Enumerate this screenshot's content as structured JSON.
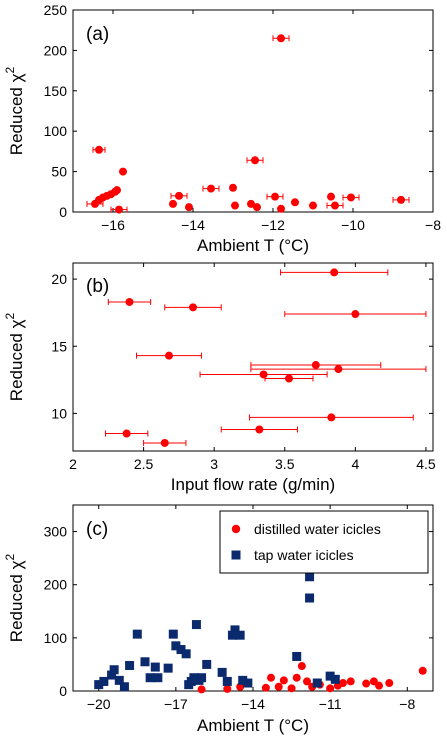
{
  "chart_data": [
    {
      "type": "scatter",
      "panel_label": "(a)",
      "xlabel": "Ambient T (°C)",
      "ylabel": "Reduced χ",
      "ylabel_sup": "2",
      "xlim": [
        -17,
        -8
      ],
      "ylim": [
        0,
        250
      ],
      "xticks": [
        -16,
        -14,
        -12,
        -10,
        -8
      ],
      "yticks": [
        0,
        50,
        100,
        150,
        200,
        250
      ],
      "color": "#ff0000",
      "points": [
        {
          "x": -16.45,
          "y": 10,
          "xerr": 0.2
        },
        {
          "x": -16.35,
          "y": 15,
          "xerr": 0
        },
        {
          "x": -16.25,
          "y": 18,
          "xerr": 0
        },
        {
          "x": -16.15,
          "y": 20,
          "xerr": 0
        },
        {
          "x": -16.05,
          "y": 22,
          "xerr": 0
        },
        {
          "x": -15.95,
          "y": 25,
          "xerr": 0
        },
        {
          "x": -15.9,
          "y": 27,
          "xerr": 0
        },
        {
          "x": -16.35,
          "y": 77,
          "xerr": 0.15
        },
        {
          "x": -15.75,
          "y": 50,
          "xerr": 0
        },
        {
          "x": -15.85,
          "y": 3,
          "xerr": 0.2
        },
        {
          "x": -14.5,
          "y": 10,
          "xerr": 0
        },
        {
          "x": -14.35,
          "y": 20,
          "xerr": 0.2
        },
        {
          "x": -14.1,
          "y": 6,
          "xerr": 0
        },
        {
          "x": -13.55,
          "y": 29,
          "xerr": 0.2
        },
        {
          "x": -13.0,
          "y": 30,
          "xerr": 0
        },
        {
          "x": -12.95,
          "y": 8,
          "xerr": 0
        },
        {
          "x": -12.55,
          "y": 10,
          "xerr": 0
        },
        {
          "x": -12.45,
          "y": 64,
          "xerr": 0.2
        },
        {
          "x": -12.4,
          "y": 6,
          "xerr": 0
        },
        {
          "x": -11.95,
          "y": 19,
          "xerr": 0.2
        },
        {
          "x": -11.8,
          "y": 4,
          "xerr": 0
        },
        {
          "x": -11.8,
          "y": 215,
          "xerr": 0.2
        },
        {
          "x": -11.45,
          "y": 12,
          "xerr": 0
        },
        {
          "x": -11.0,
          "y": 8,
          "xerr": 0
        },
        {
          "x": -10.55,
          "y": 19,
          "xerr": 0
        },
        {
          "x": -10.45,
          "y": 8,
          "xerr": 0.2
        },
        {
          "x": -10.05,
          "y": 18,
          "xerr": 0.2
        },
        {
          "x": -8.8,
          "y": 15,
          "xerr": 0.2
        }
      ]
    },
    {
      "type": "scatter",
      "panel_label": "(b)",
      "xlabel": "Input flow rate (g/min)",
      "ylabel": "Reduced χ",
      "ylabel_sup": "2",
      "xlim": [
        2,
        4.55
      ],
      "ylim": [
        7.2,
        21.2
      ],
      "xticks": [
        2,
        2.5,
        3,
        3.5,
        4,
        4.5
      ],
      "xtick_labels": [
        "2",
        "2.5",
        "3",
        "3.5",
        "4",
        "4.5"
      ],
      "yticks": [
        10,
        15,
        20
      ],
      "color": "#ff0000",
      "points": [
        {
          "x": 2.4,
          "y": 18.3,
          "xerr": 0.15
        },
        {
          "x": 2.85,
          "y": 17.9,
          "xerr": 0.2
        },
        {
          "x": 3.85,
          "y": 20.5,
          "xerr": 0.38
        },
        {
          "x": 4.0,
          "y": 17.4,
          "xerr": 0.5
        },
        {
          "x": 2.68,
          "y": 14.3,
          "xerr": 0.23
        },
        {
          "x": 3.72,
          "y": 13.6,
          "xerr": 0.46
        },
        {
          "x": 3.88,
          "y": 13.3,
          "xerr": 0.62
        },
        {
          "x": 3.35,
          "y": 12.9,
          "xerr": 0.45
        },
        {
          "x": 3.53,
          "y": 12.6,
          "xerr": 0.17
        },
        {
          "x": 3.83,
          "y": 9.7,
          "xerr": 0.58
        },
        {
          "x": 3.32,
          "y": 8.8,
          "xerr": 0.27
        },
        {
          "x": 2.38,
          "y": 8.5,
          "xerr": 0.15
        },
        {
          "x": 2.65,
          "y": 7.8,
          "xerr": 0.15
        }
      ]
    },
    {
      "type": "scatter",
      "panel_label": "(c)",
      "xlabel": "Ambient T (°C)",
      "ylabel": "Reduced χ",
      "ylabel_sup": "2",
      "xlim": [
        -21,
        -7
      ],
      "ylim": [
        0,
        350
      ],
      "xticks": [
        -20,
        -17,
        -14,
        -11,
        -8
      ],
      "yticks": [
        0,
        100,
        200,
        300
      ],
      "legend": "top-right",
      "series": [
        {
          "name": "distilled water icicles",
          "marker": "circle",
          "color": "#ff0000",
          "points": [
            {
              "x": -16.0,
              "y": 3
            },
            {
              "x": -15.0,
              "y": 4
            },
            {
              "x": -14.5,
              "y": 8
            },
            {
              "x": -13.5,
              "y": 6
            },
            {
              "x": -13.3,
              "y": 25
            },
            {
              "x": -13.0,
              "y": 8
            },
            {
              "x": -12.8,
              "y": 20
            },
            {
              "x": -12.5,
              "y": 5
            },
            {
              "x": -12.3,
              "y": 25
            },
            {
              "x": -12.1,
              "y": 47
            },
            {
              "x": -11.9,
              "y": 18
            },
            {
              "x": -11.7,
              "y": 8
            },
            {
              "x": -11.4,
              "y": 12
            },
            {
              "x": -11.0,
              "y": 5
            },
            {
              "x": -10.7,
              "y": 10
            },
            {
              "x": -10.5,
              "y": 15
            },
            {
              "x": -10.2,
              "y": 18
            },
            {
              "x": -9.6,
              "y": 14
            },
            {
              "x": -9.3,
              "y": 18
            },
            {
              "x": -9.1,
              "y": 10
            },
            {
              "x": -8.7,
              "y": 15
            },
            {
              "x": -7.4,
              "y": 38
            }
          ]
        },
        {
          "name": "tap water icicles",
          "marker": "square",
          "color": "#0b2a6e",
          "points": [
            {
              "x": -20.0,
              "y": 12
            },
            {
              "x": -19.8,
              "y": 18
            },
            {
              "x": -19.5,
              "y": 30
            },
            {
              "x": -19.4,
              "y": 40
            },
            {
              "x": -19.2,
              "y": 20
            },
            {
              "x": -19.0,
              "y": 8
            },
            {
              "x": -18.8,
              "y": 48
            },
            {
              "x": -18.5,
              "y": 107
            },
            {
              "x": -18.2,
              "y": 55
            },
            {
              "x": -18.0,
              "y": 25
            },
            {
              "x": -17.8,
              "y": 45
            },
            {
              "x": -17.7,
              "y": 25
            },
            {
              "x": -17.3,
              "y": 43
            },
            {
              "x": -17.1,
              "y": 107
            },
            {
              "x": -17.0,
              "y": 85
            },
            {
              "x": -16.8,
              "y": 78
            },
            {
              "x": -16.6,
              "y": 70
            },
            {
              "x": -16.5,
              "y": 12
            },
            {
              "x": -16.4,
              "y": 18
            },
            {
              "x": -16.3,
              "y": 25
            },
            {
              "x": -16.2,
              "y": 125
            },
            {
              "x": -16.1,
              "y": 20
            },
            {
              "x": -16.0,
              "y": 25
            },
            {
              "x": -15.8,
              "y": 50
            },
            {
              "x": -15.2,
              "y": 35
            },
            {
              "x": -15.0,
              "y": 18
            },
            {
              "x": -14.8,
              "y": 105
            },
            {
              "x": -14.7,
              "y": 115
            },
            {
              "x": -14.5,
              "y": 105
            },
            {
              "x": -14.4,
              "y": 20
            },
            {
              "x": -14.2,
              "y": 15
            },
            {
              "x": -12.3,
              "y": 65
            },
            {
              "x": -11.8,
              "y": 175
            },
            {
              "x": -11.8,
              "y": 215
            },
            {
              "x": -11.5,
              "y": 15
            },
            {
              "x": -11.0,
              "y": 28
            },
            {
              "x": -10.8,
              "y": 22
            }
          ]
        }
      ]
    }
  ]
}
